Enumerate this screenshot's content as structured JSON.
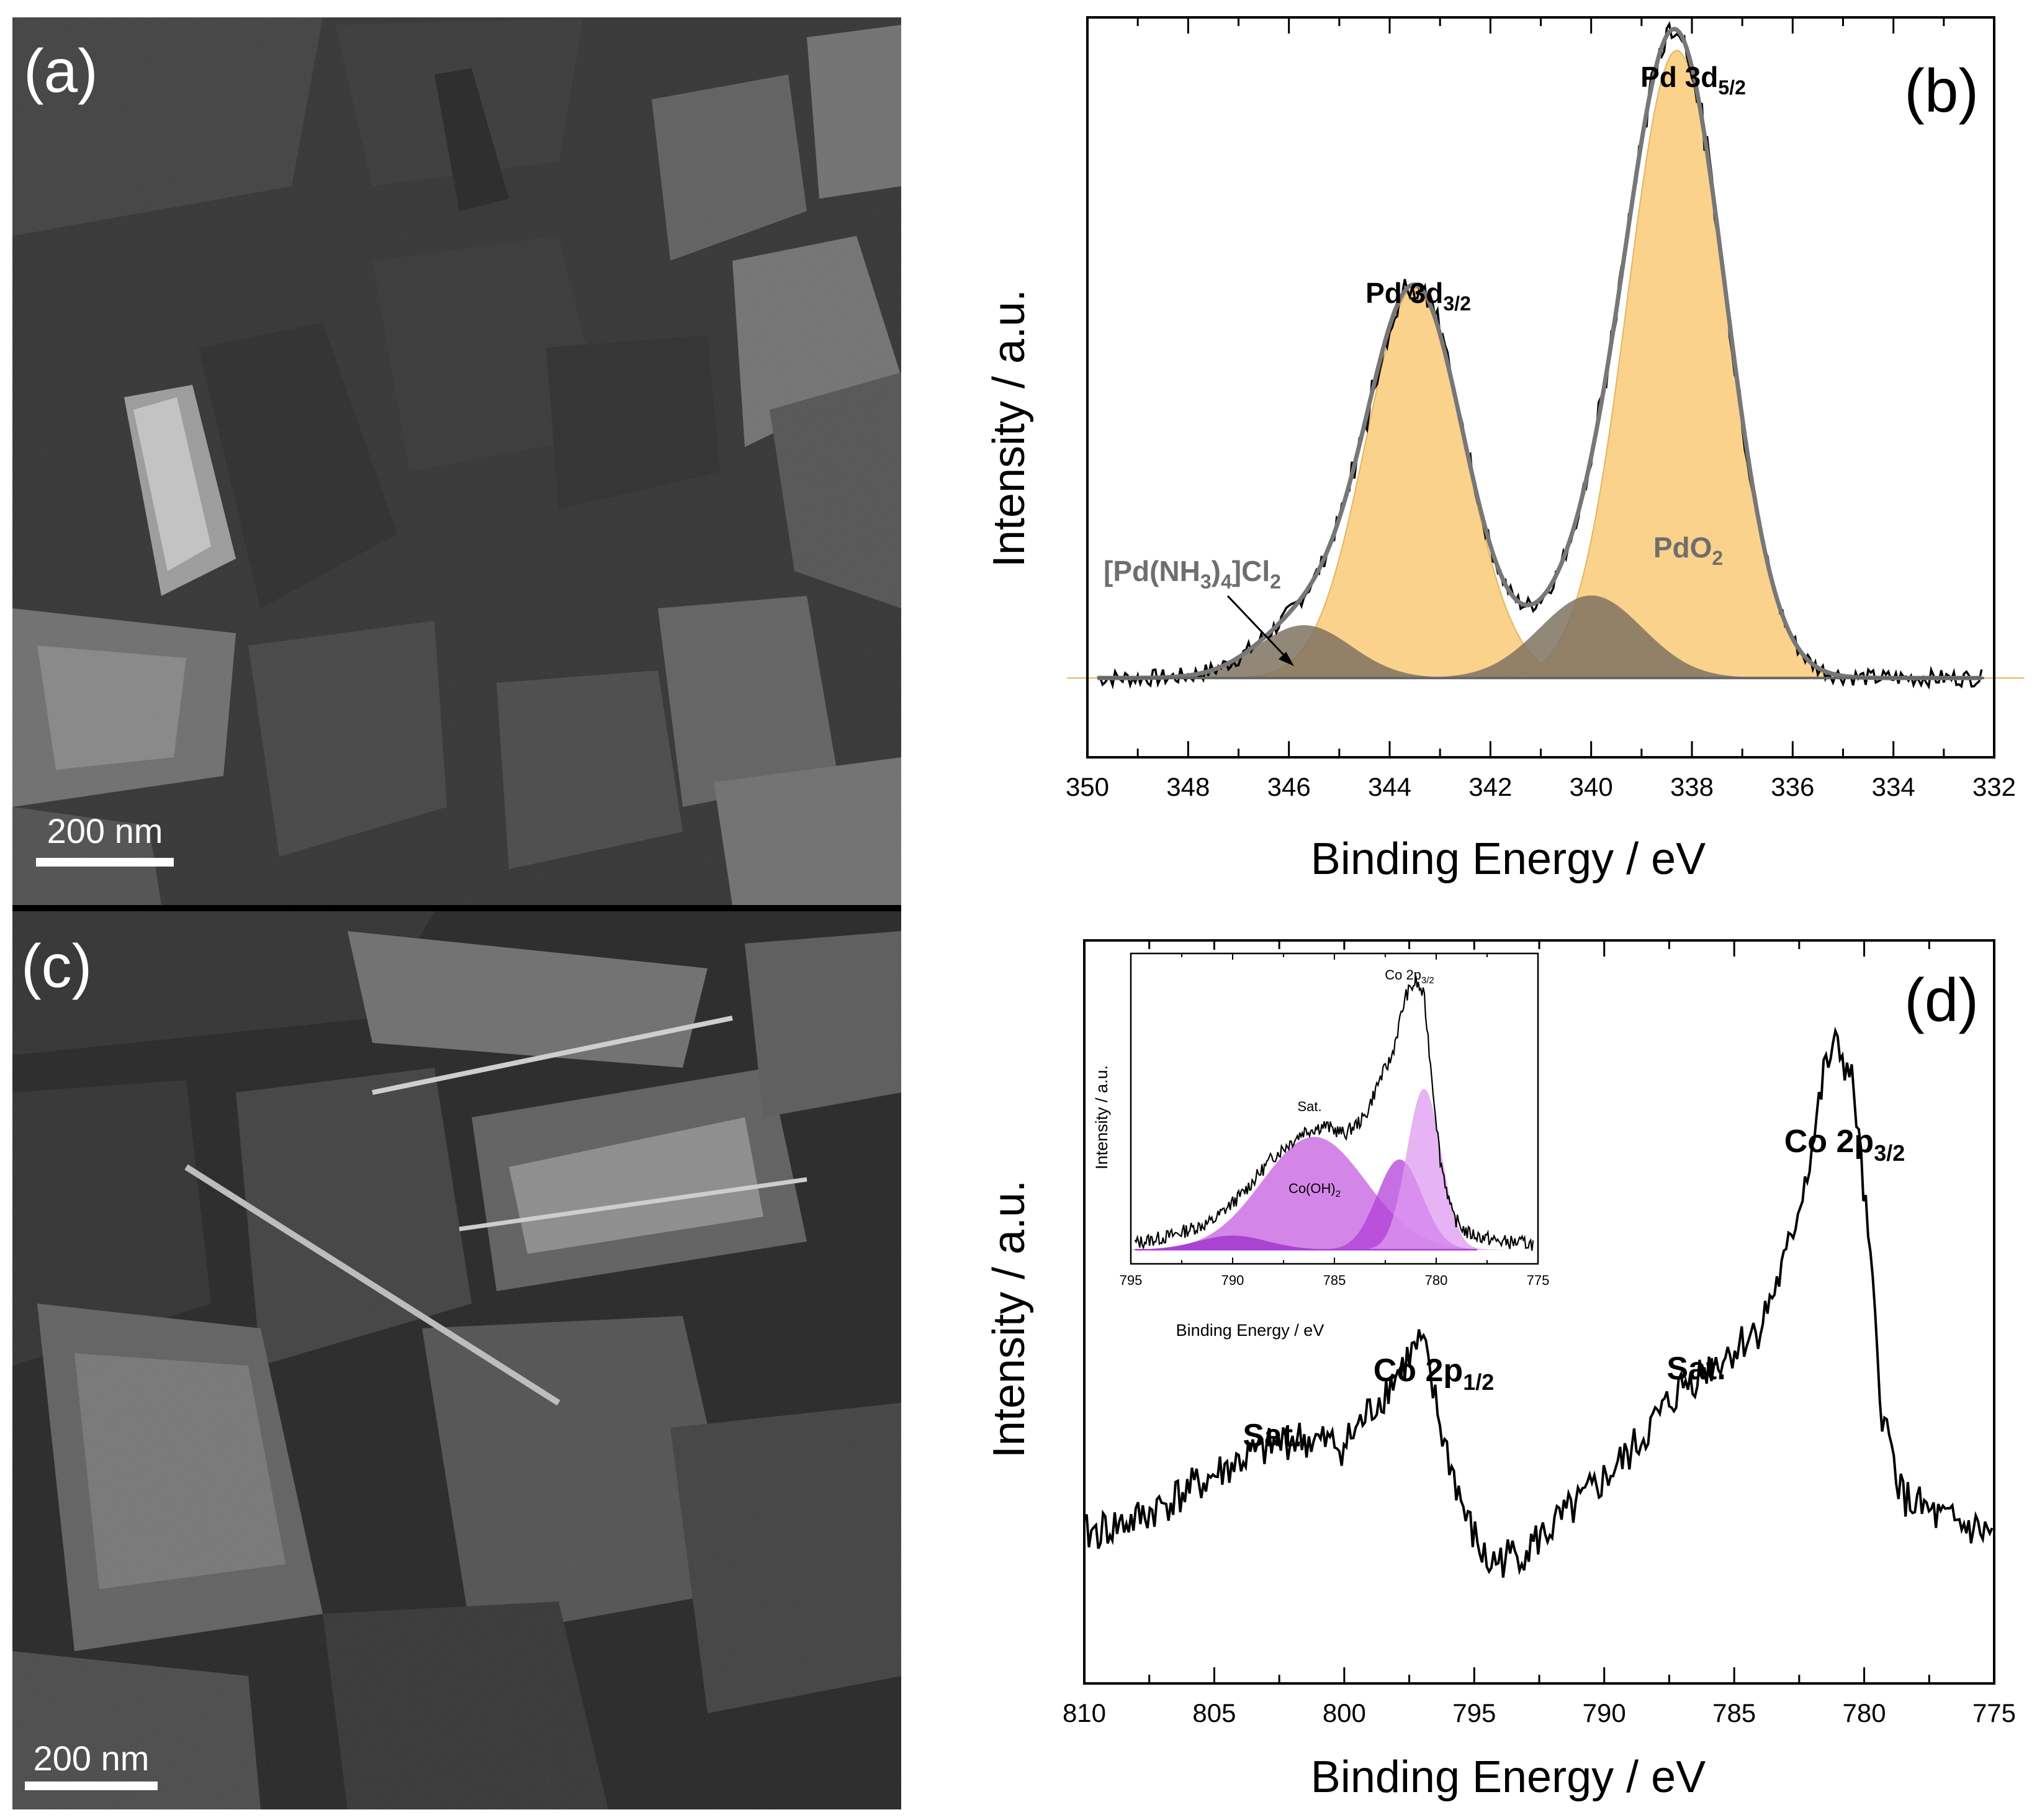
{
  "panels": {
    "a": {
      "label": "(a)",
      "scalebar": "200 nm",
      "colors": {
        "bg": "#2b2b2b",
        "flake": "#6a6a6a"
      }
    },
    "c": {
      "label": "(c)",
      "scalebar": "200 nm",
      "colors": {
        "bg": "#202020",
        "flake": "#5e5e5e"
      }
    }
  },
  "chart_data": [
    {
      "id": "b",
      "type": "line",
      "panel_label": "(b)",
      "xlabel": "Binding Energy / eV",
      "ylabel": "Intensity / a.u.",
      "xlim": [
        350,
        332
      ],
      "ylim": [
        -0.12,
        1.0
      ],
      "xticks": [
        350,
        348,
        346,
        344,
        342,
        340,
        338,
        336,
        334,
        332
      ],
      "tick_labels": [
        "350",
        "348",
        "346",
        "344",
        "342",
        "340",
        "338",
        "336",
        "334",
        "332"
      ],
      "components": [
        {
          "name": "Pd 3d3/2 (PdO2)",
          "center": 343.5,
          "height": 0.59,
          "fwhm": 2.3,
          "color": "#fbd28c"
        },
        {
          "name": "Pd 3d5/2 (PdO2)",
          "center": 338.3,
          "height": 0.95,
          "fwhm": 2.3,
          "color": "#fbd28c"
        },
        {
          "name": "[Pd(NH3)4]Cl2 3d3/2",
          "center": 345.7,
          "height": 0.08,
          "fwhm": 2.2,
          "color": "#7f7360"
        },
        {
          "name": "[Pd(NH3)4]Cl2 3d5/2",
          "center": 340.0,
          "height": 0.125,
          "fwhm": 2.4,
          "color": "#7f7360"
        }
      ],
      "annotations": [
        {
          "text": "Pd 3d",
          "sub": "5/2",
          "x": 338.3,
          "y": 1.0
        },
        {
          "text": "Pd 3d",
          "sub": "3/2",
          "x": 343.5,
          "y": 0.65
        },
        {
          "text": "PdO",
          "sub": "2",
          "x": 337.6,
          "y": 0.22
        },
        {
          "text": "[Pd(NH3)4]Cl2",
          "x": 345.7,
          "y": 0.16
        }
      ],
      "text": {
        "peak_high": "Pd 3d",
        "peak_high_sub": "5/2",
        "peak_low": "Pd 3d",
        "peak_low_sub": "3/2",
        "oxide": "PdO",
        "oxide_sub": "2",
        "complex_a": "[Pd(NH",
        "complex_b": "3",
        "complex_c": ")",
        "complex_d": "4",
        "complex_e": "]Cl",
        "complex_f": "2"
      }
    },
    {
      "id": "d",
      "type": "line",
      "panel_label": "(d)",
      "xlabel": "Binding Energy / eV",
      "ylabel": "Intensity / a.u.",
      "xlim": [
        810,
        775
      ],
      "ylim": [
        0,
        1.0
      ],
      "xticks": [
        810,
        805,
        800,
        795,
        790,
        785,
        780,
        775
      ],
      "tick_labels": [
        "810",
        "805",
        "800",
        "795",
        "790",
        "785",
        "780",
        "775"
      ],
      "x": [
        810,
        808,
        806,
        804,
        802,
        800,
        798.5,
        797.5,
        797,
        796.2,
        795.3,
        794.5,
        793,
        791,
        789,
        787,
        785,
        784,
        783,
        782,
        781.5,
        781,
        780.4,
        779.8,
        779.3,
        778.5,
        777,
        775
      ],
      "y": [
        0.2,
        0.22,
        0.26,
        0.3,
        0.33,
        0.32,
        0.39,
        0.44,
        0.46,
        0.33,
        0.22,
        0.16,
        0.18,
        0.24,
        0.31,
        0.4,
        0.45,
        0.48,
        0.57,
        0.72,
        0.83,
        0.86,
        0.8,
        0.58,
        0.36,
        0.25,
        0.22,
        0.2
      ],
      "annotations": [
        {
          "text": "Sat.",
          "x": 803
        },
        {
          "text": "Co 2p",
          "sub": "1/2",
          "x": 796.4
        },
        {
          "text": "Sat.",
          "x": 786.7
        },
        {
          "text": "Co 2p",
          "sub": "3/2",
          "x": 781
        }
      ],
      "text": {
        "sat_left": "Sat.",
        "p12": "Co 2p",
        "p12_sub": "1/2",
        "sat_right": "Sat.",
        "p32": "Co 2p",
        "p32_sub": "3/2"
      },
      "inset": {
        "xlabel": "Binding Energy / eV",
        "ylabel": "Intensity / a.u.",
        "xlim": [
          795,
          775
        ],
        "ylim": [
          -0.05,
          1.05
        ],
        "xticks": [
          795,
          790,
          785,
          780,
          775
        ],
        "tick_labels": [
          "795",
          "790",
          "785",
          "780",
          "775"
        ],
        "x": [
          795,
          793,
          791,
          789.5,
          788,
          786.5,
          785.5,
          784.5,
          783.5,
          782.8,
          782.2,
          781.5,
          781,
          780.6,
          780.2,
          779.8,
          779.2,
          778.5,
          777,
          775
        ],
        "y": [
          0.02,
          0.05,
          0.1,
          0.2,
          0.33,
          0.42,
          0.44,
          0.41,
          0.47,
          0.6,
          0.68,
          0.9,
          0.95,
          0.9,
          0.6,
          0.32,
          0.12,
          0.06,
          0.03,
          0.02
        ],
        "components": [
          {
            "name": "Sat.",
            "center": 786,
            "height": 0.4,
            "fwhm": 6.0,
            "color": "#c55ee0"
          },
          {
            "name": "Co(OH)2",
            "center": 781.8,
            "height": 0.32,
            "fwhm": 2.6,
            "color": "#b23fd8"
          },
          {
            "name": "Co 2p3/2",
            "center": 780.6,
            "height": 0.57,
            "fwhm": 2.0,
            "color": "#dd9af0"
          },
          {
            "name": "Sat. (low)",
            "center": 790,
            "height": 0.05,
            "fwhm": 4.0,
            "color": "#9a2ec8"
          }
        ],
        "text": {
          "peak": "Co 2p",
          "peak_sub": "3/2",
          "sat": "Sat.",
          "hydroxide": "Co(OH)",
          "hydroxide_sub": "2"
        }
      }
    }
  ]
}
